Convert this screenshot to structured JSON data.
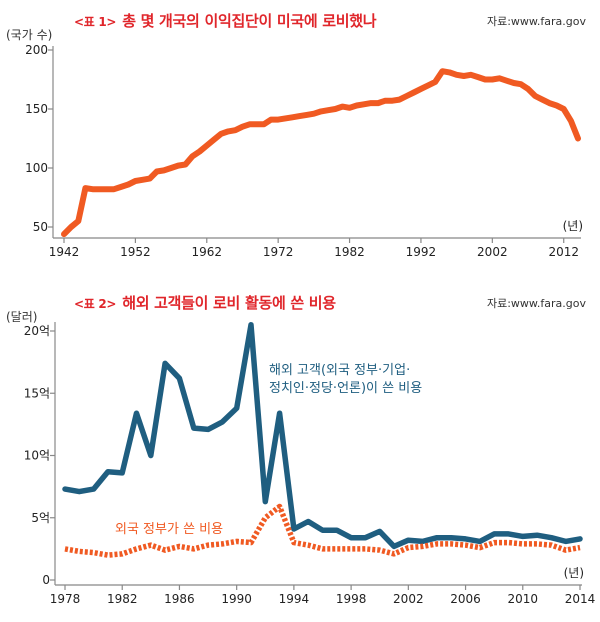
{
  "colors": {
    "title": "#e0262b",
    "line1": "#f05a22",
    "clients": "#1f5e80",
    "governments": "#f05a22",
    "axis": "#888888"
  },
  "chart_data": [
    {
      "type": "line",
      "title_num": "<표 1>",
      "title": "총 몇 개국의 이익집단이 미국에 로비했나",
      "source": "자료:www.fara.gov",
      "ylabel": "(국가 수)",
      "xlabel": "(년)",
      "ylim": [
        40,
        200
      ],
      "yticks": [
        50,
        100,
        150,
        200
      ],
      "ytick_labels": [
        "50",
        "100",
        "150",
        "200"
      ],
      "xlim": [
        1942,
        2014
      ],
      "xticks": [
        1942,
        1952,
        1962,
        1972,
        1982,
        1992,
        2002,
        2012
      ],
      "xtick_labels": [
        "1942",
        "1952",
        "1962",
        "1972",
        "1982",
        "1992",
        "2002",
        "2012"
      ],
      "grid": false,
      "series": [
        {
          "name": "국가 수",
          "x": [
            1942,
            1943,
            1944,
            1945,
            1946,
            1947,
            1948,
            1949,
            1950,
            1951,
            1952,
            1953,
            1954,
            1955,
            1956,
            1957,
            1958,
            1959,
            1960,
            1961,
            1962,
            1963,
            1964,
            1965,
            1966,
            1967,
            1968,
            1969,
            1970,
            1971,
            1972,
            1973,
            1974,
            1975,
            1976,
            1977,
            1978,
            1979,
            1980,
            1981,
            1982,
            1983,
            1984,
            1985,
            1986,
            1987,
            1988,
            1989,
            1990,
            1991,
            1992,
            1993,
            1994,
            1995,
            1996,
            1997,
            1998,
            1999,
            2000,
            2001,
            2002,
            2003,
            2004,
            2005,
            2006,
            2007,
            2008,
            2009,
            2010,
            2011,
            2012,
            2013,
            2014
          ],
          "values": [
            44,
            50,
            55,
            83,
            82,
            82,
            82,
            82,
            84,
            86,
            89,
            90,
            91,
            97,
            98,
            100,
            102,
            103,
            110,
            114,
            119,
            124,
            129,
            131,
            132,
            135,
            137,
            137,
            137,
            141,
            141,
            142,
            143,
            144,
            145,
            146,
            148,
            149,
            150,
            152,
            151,
            153,
            154,
            155,
            155,
            157,
            157,
            158,
            161,
            164,
            167,
            170,
            173,
            182,
            181,
            179,
            178,
            179,
            177,
            175,
            175,
            176,
            174,
            172,
            171,
            167,
            161,
            158,
            155,
            153,
            150,
            140,
            125
          ]
        }
      ]
    },
    {
      "type": "line",
      "title_num": "<표 2>",
      "title": "해외 고객들이 로비 활동에 쓴 비용",
      "source": "자료:www.fara.gov",
      "ylabel": "(달러)",
      "xlabel": "(년)",
      "unit": "억 달러",
      "ylim": [
        0,
        20.5
      ],
      "yticks": [
        0,
        5,
        10,
        15,
        20
      ],
      "ytick_labels": [
        "0",
        "5억",
        "10억",
        "15억",
        "20억"
      ],
      "xlim": [
        1978,
        2014
      ],
      "xticks": [
        1978,
        1982,
        1986,
        1990,
        1994,
        1998,
        2002,
        2006,
        2010,
        2014
      ],
      "xtick_labels": [
        "1978",
        "1982",
        "1986",
        "1990",
        "1994",
        "1998",
        "2002",
        "2006",
        "2010",
        "2014"
      ],
      "grid": false,
      "annotations": {
        "clients_line1": "해외 고객(외국 정부·기업·",
        "clients_line2": "정치인·정당·언론)이 쓴 비용",
        "governments": "외국 정부가 쓴 비용"
      },
      "series": [
        {
          "name": "해외 고객(외국 정부·기업·정치인·정당·언론)이 쓴 비용",
          "style": "solid",
          "x": [
            1978,
            1979,
            1980,
            1981,
            1982,
            1983,
            1984,
            1985,
            1986,
            1987,
            1988,
            1989,
            1990,
            1991,
            1992,
            1993,
            1994,
            1995,
            1996,
            1997,
            1998,
            1999,
            2000,
            2001,
            2002,
            2003,
            2004,
            2005,
            2006,
            2007,
            2008,
            2009,
            2010,
            2011,
            2012,
            2013,
            2014
          ],
          "values": [
            7.3,
            7.1,
            7.3,
            8.7,
            8.6,
            13.4,
            10.0,
            17.4,
            16.2,
            12.2,
            12.1,
            12.7,
            13.8,
            20.5,
            6.3,
            13.4,
            4.1,
            4.7,
            4.0,
            4.0,
            3.4,
            3.4,
            3.9,
            2.7,
            3.2,
            3.1,
            3.4,
            3.4,
            3.3,
            3.1,
            3.7,
            3.7,
            3.5,
            3.6,
            3.4,
            3.1,
            3.3
          ]
        },
        {
          "name": "외국 정부가 쓴 비용",
          "style": "dotted",
          "x": [
            1978,
            1979,
            1980,
            1981,
            1982,
            1983,
            1984,
            1985,
            1986,
            1987,
            1988,
            1989,
            1990,
            1991,
            1992,
            1993,
            1994,
            1995,
            1996,
            1997,
            1998,
            1999,
            2000,
            2001,
            2002,
            2003,
            2004,
            2005,
            2006,
            2007,
            2008,
            2009,
            2010,
            2011,
            2012,
            2013,
            2014
          ],
          "values": [
            2.5,
            2.3,
            2.2,
            2.0,
            2.1,
            2.5,
            2.8,
            2.4,
            2.7,
            2.5,
            2.8,
            2.9,
            3.1,
            3.0,
            5.0,
            5.9,
            3.0,
            2.8,
            2.5,
            2.5,
            2.5,
            2.5,
            2.4,
            2.1,
            2.6,
            2.7,
            2.9,
            2.9,
            2.8,
            2.6,
            3.0,
            3.0,
            2.9,
            2.9,
            2.8,
            2.4,
            2.6
          ]
        }
      ]
    }
  ]
}
